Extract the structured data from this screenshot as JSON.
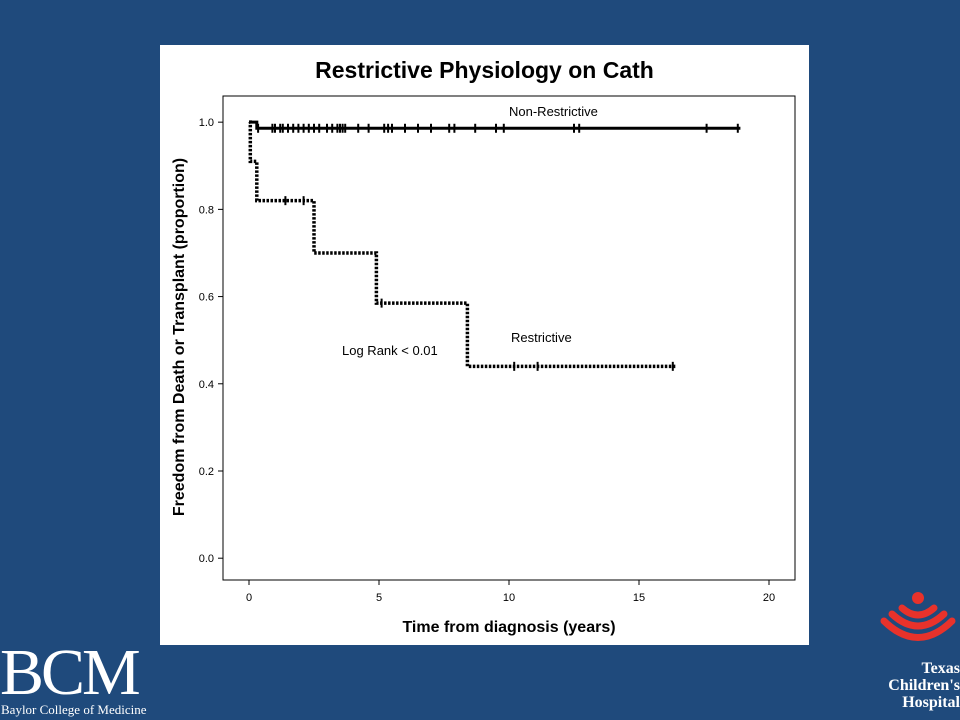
{
  "chart_data": {
    "type": "line",
    "subtype": "kaplan-meier-step",
    "title": "Restrictive Physiology on Cath",
    "xlabel": "Time from diagnosis (years)",
    "ylabel": "Freedom from Death or Transplant (proportion)",
    "xlim": [
      -1,
      21
    ],
    "ylim": [
      -0.05,
      1.06
    ],
    "x_ticks": [
      0,
      5,
      10,
      15,
      20
    ],
    "x_tick_labels": [
      "0",
      "5",
      "10",
      "15",
      "20"
    ],
    "y_ticks": [
      0.0,
      0.2,
      0.4,
      0.6,
      0.8,
      1.0
    ],
    "y_tick_labels": [
      "0.0",
      "0.2",
      "0.4",
      "0.6",
      "0.8",
      "1.0"
    ],
    "grid": false,
    "legend": "none",
    "annotations": {
      "log_rank": "Log Rank < 0.01"
    },
    "series": [
      {
        "name": "Non-Restrictive",
        "style": "solid",
        "color": "#000000",
        "steps": [
          [
            0,
            1.0
          ],
          [
            0.3,
            0.986
          ],
          [
            18.9,
            0.986
          ]
        ],
        "censored": [
          0.35,
          0.9,
          1.0,
          1.2,
          1.3,
          1.5,
          1.7,
          1.9,
          2.1,
          2.3,
          2.5,
          2.7,
          3.0,
          3.2,
          3.4,
          3.5,
          3.6,
          3.7,
          4.2,
          4.6,
          5.2,
          5.35,
          5.5,
          6.0,
          6.5,
          7.0,
          7.7,
          7.9,
          8.7,
          9.5,
          9.8,
          12.5,
          12.7,
          17.6,
          18.8
        ]
      },
      {
        "name": "Restrictive",
        "style": "dotted",
        "color": "#000000",
        "steps": [
          [
            0,
            1.0
          ],
          [
            0.05,
            0.91
          ],
          [
            0.3,
            0.82
          ],
          [
            2.5,
            0.7
          ],
          [
            4.9,
            0.585
          ],
          [
            8.4,
            0.44
          ],
          [
            16.4,
            0.44
          ]
        ],
        "censored": [
          1.4,
          2.1,
          5.1,
          10.2,
          11.1,
          16.3
        ]
      }
    ]
  },
  "logos": {
    "bcm": {
      "letters": "BCM",
      "name": "Baylor College of Medicine"
    },
    "tch": {
      "line1": "Texas",
      "line2": "Children's",
      "line3": "Hospital",
      "symbol_color": "#e8322b"
    }
  },
  "colors": {
    "background": "#1f4a7c",
    "panel": "#ffffff"
  }
}
